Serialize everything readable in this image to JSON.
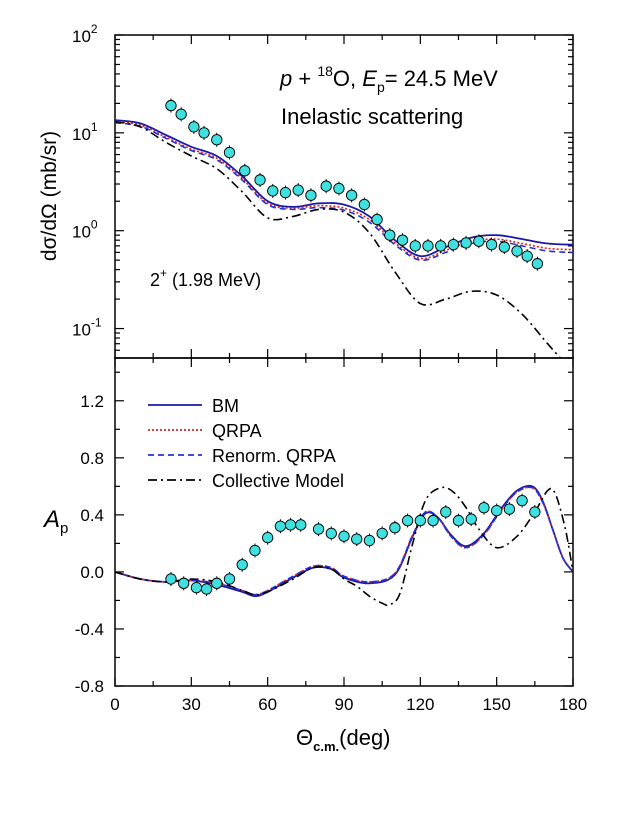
{
  "chart_data": [
    {
      "type": "line",
      "panel": "top",
      "ylabel": "dσ/dΩ (mb/sr)",
      "yscale": "log",
      "ylim": [
        0.05,
        100
      ],
      "xlim": [
        0,
        180
      ],
      "ytick_labels": [
        {
          "v": 0.1,
          "base": "10",
          "exp": "-1"
        },
        {
          "v": 1,
          "base": "10",
          "exp": "0"
        },
        {
          "v": 10,
          "base": "10",
          "exp": "1"
        },
        {
          "v": 100,
          "base": "10",
          "exp": "2"
        }
      ],
      "annotations": {
        "title_p": "p",
        "title_plus": " + ",
        "title_mass": "18",
        "title_O": "O, ",
        "title_E": "E",
        "title_sub": "p",
        "title_energy": "= 24.5 MeV",
        "subtitle": "Inelastic scattering",
        "state_label": "2",
        "state_sup": "+",
        "state_energy": " (1.98 MeV)"
      },
      "series": [
        {
          "name": "BM",
          "color": "#1a1aa8",
          "dash": "solid",
          "x": [
            0,
            10,
            20,
            30,
            40,
            50,
            60,
            70,
            80,
            90,
            100,
            110,
            120,
            130,
            140,
            150,
            160,
            170,
            180
          ],
          "y": [
            13.5,
            12.5,
            9.5,
            7.2,
            5.8,
            3.6,
            2.0,
            1.75,
            1.9,
            1.85,
            1.4,
            0.8,
            0.55,
            0.68,
            0.85,
            0.9,
            0.82,
            0.74,
            0.72
          ]
        },
        {
          "name": "QRPA",
          "color": "#dd2020",
          "dash": "dotted",
          "x": [
            0,
            10,
            20,
            30,
            40,
            50,
            60,
            70,
            80,
            90,
            100,
            110,
            120,
            130,
            140,
            150,
            160,
            170,
            180
          ],
          "y": [
            13.0,
            12.0,
            9.0,
            6.8,
            5.5,
            3.4,
            1.9,
            1.7,
            1.8,
            1.7,
            1.3,
            0.75,
            0.52,
            0.63,
            0.78,
            0.82,
            0.74,
            0.66,
            0.64
          ]
        },
        {
          "name": "Renorm. QRPA",
          "color": "#2233dd",
          "dash": "dashed",
          "x": [
            0,
            10,
            20,
            30,
            40,
            50,
            60,
            70,
            80,
            90,
            100,
            110,
            120,
            130,
            140,
            150,
            160,
            170,
            180
          ],
          "y": [
            12.7,
            11.7,
            8.8,
            6.6,
            5.3,
            3.3,
            1.85,
            1.65,
            1.72,
            1.62,
            1.22,
            0.72,
            0.5,
            0.6,
            0.74,
            0.78,
            0.7,
            0.62,
            0.6
          ]
        },
        {
          "name": "Collective Model",
          "color": "#000000",
          "dash": "dashdot",
          "x": [
            0,
            10,
            20,
            30,
            40,
            50,
            60,
            70,
            80,
            90,
            100,
            110,
            120,
            130,
            140,
            150,
            160,
            170,
            175
          ],
          "y": [
            13.0,
            11.5,
            8.0,
            5.8,
            4.3,
            2.5,
            1.35,
            1.4,
            1.65,
            1.55,
            0.95,
            0.38,
            0.18,
            0.2,
            0.24,
            0.22,
            0.14,
            0.07,
            0.05
          ]
        },
        {
          "name": "",
          "color": "#40e0e0",
          "marker": "circle",
          "x": [
            22,
            26,
            31,
            35,
            40,
            45,
            51,
            57,
            62,
            67,
            72,
            77,
            83,
            88,
            93,
            98,
            103,
            108,
            113,
            118,
            123,
            128,
            133,
            138,
            143,
            148,
            153,
            158,
            162,
            166
          ],
          "y": [
            19,
            15.5,
            11.5,
            10,
            8.5,
            6.3,
            4.1,
            3.3,
            2.55,
            2.45,
            2.6,
            2.3,
            2.85,
            2.7,
            2.3,
            1.85,
            1.3,
            0.9,
            0.8,
            0.7,
            0.7,
            0.7,
            0.72,
            0.75,
            0.78,
            0.72,
            0.68,
            0.62,
            0.55,
            0.46
          ]
        }
      ]
    },
    {
      "type": "line",
      "panel": "bottom",
      "xlabel": "Θc.m.(deg)",
      "xlabel_main": "Θ",
      "xlabel_sub": "c.m.",
      "xlabel_unit": "(deg)",
      "ylabel_main": "A",
      "ylabel_sub": "p",
      "xlim": [
        0,
        180
      ],
      "ylim": [
        -0.8,
        1.5
      ],
      "xticks": [
        0,
        30,
        60,
        90,
        120,
        150,
        180
      ],
      "xtick_labels": [
        "0",
        "30",
        "60",
        "90",
        "120",
        "150",
        "180"
      ],
      "yticks": [
        -0.8,
        -0.4,
        0.0,
        0.4,
        0.8,
        1.2
      ],
      "ytick_labels": [
        "-0.8",
        "-0.4",
        "0.0",
        "0.4",
        "0.8",
        "1.2"
      ],
      "legend": [
        "BM",
        "QRPA",
        "Renorm. QRPA",
        "Collective Model"
      ],
      "legend_position": "top-left",
      "series": [
        {
          "name": "BM",
          "color": "#1a1aa8",
          "dash": "solid",
          "x": [
            0,
            10,
            20,
            30,
            40,
            50,
            55,
            60,
            70,
            78,
            85,
            90,
            100,
            110,
            117,
            122,
            127,
            132,
            138,
            145,
            152,
            158,
            164,
            168,
            172,
            176,
            180
          ],
          "y": [
            0.0,
            -0.05,
            -0.07,
            -0.06,
            -0.09,
            -0.14,
            -0.17,
            -0.14,
            -0.04,
            0.03,
            0.02,
            -0.04,
            -0.08,
            -0.02,
            0.25,
            0.41,
            0.38,
            0.26,
            0.18,
            0.27,
            0.45,
            0.57,
            0.6,
            0.5,
            0.3,
            0.1,
            0.0
          ]
        },
        {
          "name": "QRPA",
          "color": "#dd2020",
          "dash": "dotted",
          "x": [
            0,
            10,
            20,
            30,
            40,
            50,
            55,
            60,
            70,
            78,
            85,
            90,
            100,
            110,
            117,
            122,
            127,
            132,
            138,
            145,
            152,
            158,
            164,
            168,
            172,
            176,
            180
          ],
          "y": [
            0.0,
            -0.05,
            -0.07,
            -0.06,
            -0.08,
            -0.13,
            -0.16,
            -0.13,
            -0.03,
            0.04,
            0.03,
            -0.03,
            -0.07,
            -0.01,
            0.26,
            0.42,
            0.38,
            0.25,
            0.17,
            0.26,
            0.44,
            0.56,
            0.59,
            0.49,
            0.3,
            0.1,
            0.0
          ]
        },
        {
          "name": "Renorm. QRPA",
          "color": "#2233dd",
          "dash": "dashed",
          "x": [
            0,
            10,
            20,
            30,
            40,
            50,
            55,
            60,
            70,
            78,
            85,
            90,
            100,
            110,
            117,
            122,
            127,
            132,
            138,
            145,
            152,
            158,
            164,
            168,
            172,
            176,
            180
          ],
          "y": [
            0.0,
            -0.05,
            -0.07,
            -0.06,
            -0.08,
            -0.13,
            -0.16,
            -0.13,
            -0.03,
            0.04,
            0.03,
            -0.03,
            -0.07,
            -0.01,
            0.26,
            0.42,
            0.38,
            0.25,
            0.17,
            0.26,
            0.44,
            0.56,
            0.59,
            0.49,
            0.3,
            0.1,
            0.0
          ]
        },
        {
          "name": "Collective Model",
          "color": "#000000",
          "dash": "dashdot",
          "x": [
            0,
            10,
            20,
            30,
            40,
            50,
            55,
            60,
            70,
            78,
            85,
            90,
            95,
            100,
            105,
            108,
            112,
            117,
            122,
            128,
            133,
            138,
            143,
            150,
            158,
            165,
            170,
            173,
            177,
            180
          ],
          "y": [
            0.0,
            -0.05,
            -0.07,
            -0.05,
            -0.07,
            -0.13,
            -0.16,
            -0.14,
            -0.05,
            0.03,
            0.02,
            -0.05,
            -0.1,
            -0.17,
            -0.22,
            -0.23,
            -0.15,
            0.2,
            0.5,
            0.59,
            0.56,
            0.45,
            0.3,
            0.17,
            0.25,
            0.42,
            0.57,
            0.55,
            0.3,
            0.0
          ]
        },
        {
          "name": "",
          "color": "#40e0e0",
          "marker": "circle",
          "x": [
            22,
            27,
            32,
            36,
            40,
            45,
            50,
            55,
            60,
            65,
            69,
            73,
            80,
            85,
            90,
            95,
            100,
            105,
            110,
            115,
            120,
            125,
            130,
            135,
            140,
            145,
            150,
            155,
            160,
            165
          ],
          "y": [
            -0.05,
            -0.08,
            -0.11,
            -0.12,
            -0.08,
            -0.05,
            0.05,
            0.15,
            0.24,
            0.32,
            0.33,
            0.33,
            0.3,
            0.27,
            0.25,
            0.23,
            0.22,
            0.27,
            0.31,
            0.36,
            0.36,
            0.36,
            0.42,
            0.36,
            0.37,
            0.45,
            0.43,
            0.44,
            0.5,
            0.42
          ]
        }
      ]
    }
  ]
}
